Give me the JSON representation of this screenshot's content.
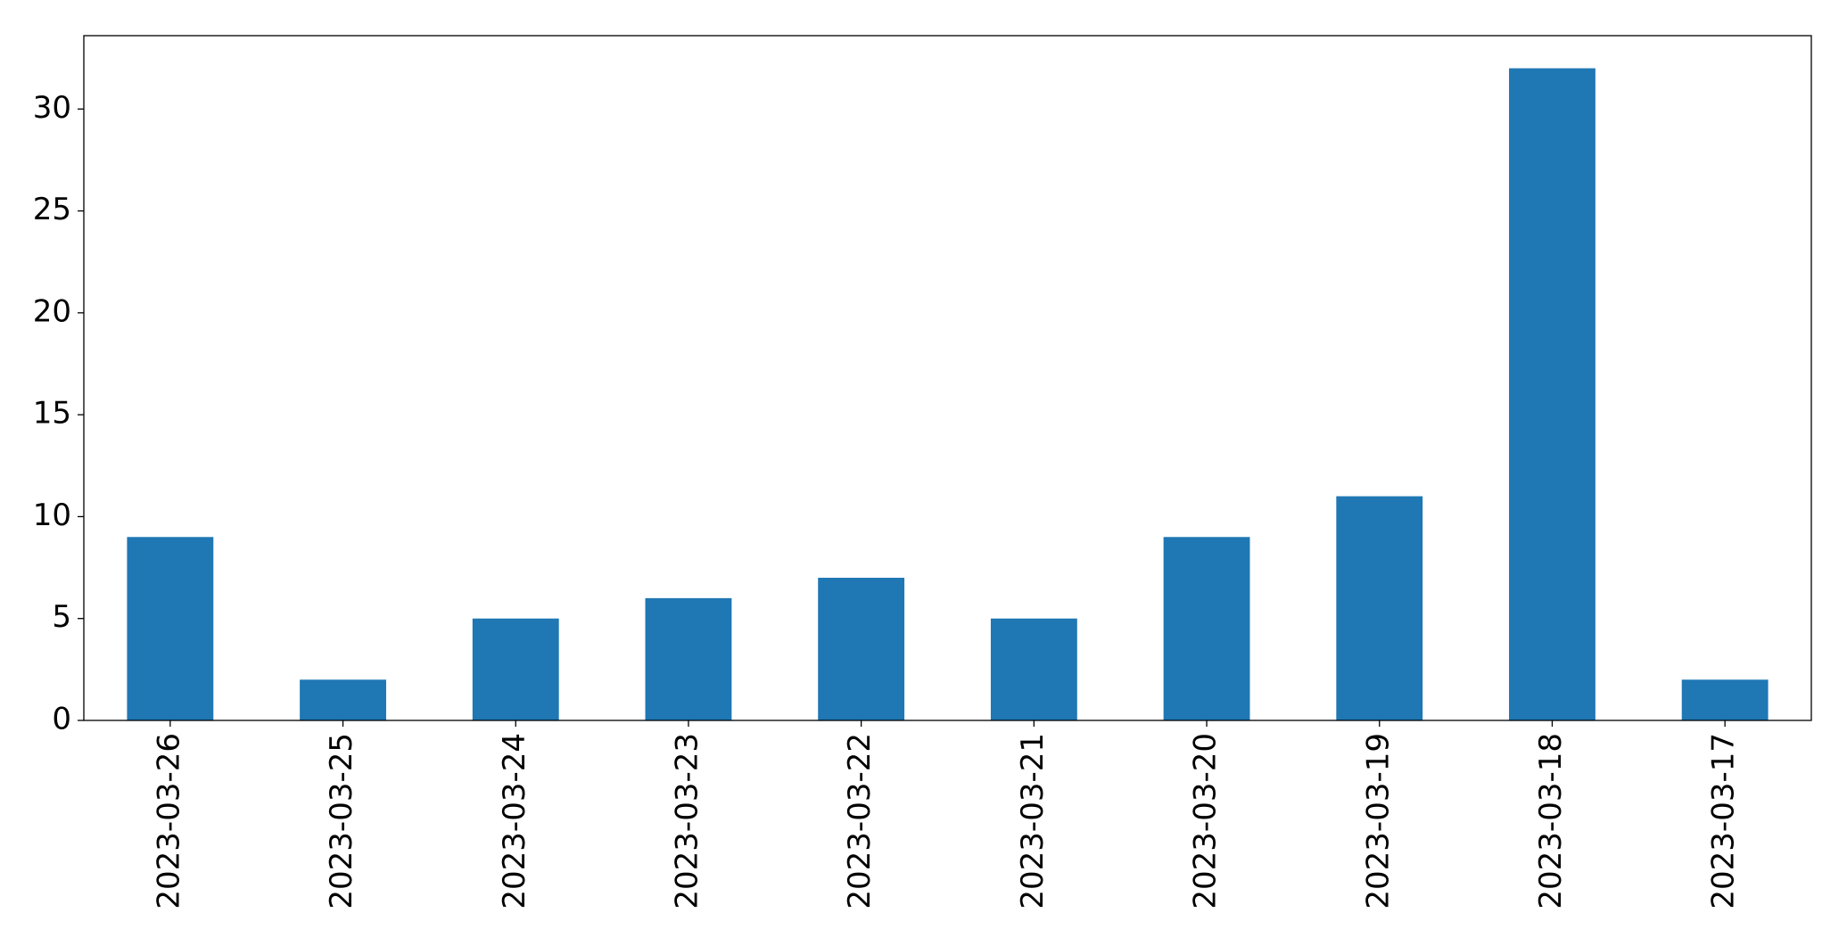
{
  "chart_data": {
    "type": "bar",
    "categories": [
      "2023-03-26",
      "2023-03-25",
      "2023-03-24",
      "2023-03-23",
      "2023-03-22",
      "2023-03-21",
      "2023-03-20",
      "2023-03-19",
      "2023-03-18",
      "2023-03-17"
    ],
    "values": [
      9,
      2,
      5,
      6,
      7,
      5,
      9,
      11,
      32,
      2
    ],
    "color": "#1f77b4",
    "ylim": [
      0,
      33.6
    ],
    "yticks": [
      0,
      5,
      10,
      15,
      20,
      25,
      30
    ],
    "grid": false
  }
}
